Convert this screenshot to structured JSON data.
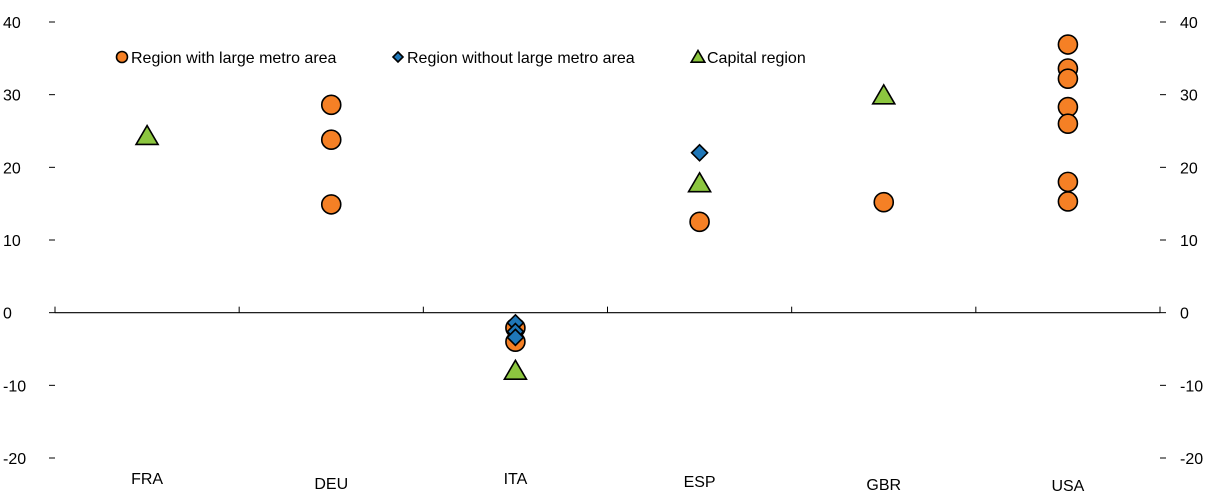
{
  "chart_data": {
    "type": "scatter",
    "title": "",
    "xlabel": "",
    "ylabel": "",
    "ylim": [
      -20,
      40
    ],
    "yticks": [
      -20,
      -10,
      0,
      10,
      20,
      30,
      40
    ],
    "y_axis_both_sides": true,
    "grid": false,
    "legend_position": "top",
    "categories": [
      "FRA",
      "DEU",
      "ITA",
      "ESP",
      "GBR",
      "USA"
    ],
    "series": [
      {
        "name": "Region with large metro area",
        "marker": "circle",
        "color": "#F58025",
        "points": [
          {
            "x": "DEU",
            "y": 28.6
          },
          {
            "x": "DEU",
            "y": 23.8
          },
          {
            "x": "DEU",
            "y": 14.9
          },
          {
            "x": "ITA",
            "y": -2.1
          },
          {
            "x": "ITA",
            "y": -4.0
          },
          {
            "x": "ESP",
            "y": 12.5
          },
          {
            "x": "GBR",
            "y": 15.2
          },
          {
            "x": "USA",
            "y": 36.9
          },
          {
            "x": "USA",
            "y": 33.6
          },
          {
            "x": "USA",
            "y": 32.2
          },
          {
            "x": "USA",
            "y": 28.3
          },
          {
            "x": "USA",
            "y": 26.0
          },
          {
            "x": "USA",
            "y": 18.0
          },
          {
            "x": "USA",
            "y": 15.3
          }
        ]
      },
      {
        "name": "Region without large metro area",
        "marker": "diamond",
        "color": "#1F77B8",
        "points": [
          {
            "x": "ITA",
            "y": -1.4
          },
          {
            "x": "ITA",
            "y": -2.6
          },
          {
            "x": "ITA",
            "y": -3.4
          },
          {
            "x": "ESP",
            "y": 22.0
          }
        ]
      },
      {
        "name": "Capital region",
        "marker": "triangle",
        "color": "#8CC63F",
        "points": [
          {
            "x": "FRA",
            "y": 24.3
          },
          {
            "x": "ITA",
            "y": -8.0
          },
          {
            "x": "ESP",
            "y": 17.8
          },
          {
            "x": "GBR",
            "y": 29.9
          }
        ]
      }
    ]
  }
}
